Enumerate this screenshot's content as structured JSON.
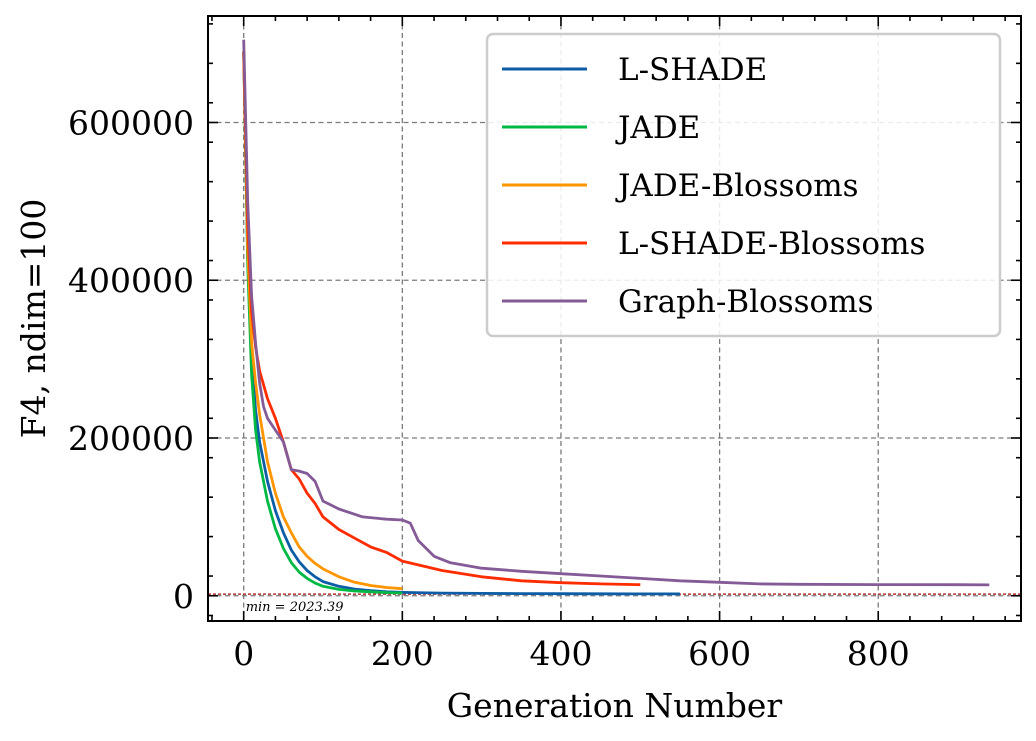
{
  "chart_data": {
    "type": "line",
    "xlabel": "Generation Number",
    "ylabel": "F4, ndim=100",
    "xlim": [
      -45,
      980
    ],
    "ylim": [
      -32000,
      735000
    ],
    "xticks": [
      0,
      200,
      400,
      600,
      800
    ],
    "yticks": [
      0,
      200000,
      400000,
      600000
    ],
    "grid": true,
    "legend_position": "top-right",
    "reference_line": {
      "y": 2023.39,
      "label": "min = 2023.39",
      "color": "#b03030"
    },
    "series": [
      {
        "name": "L-SHADE",
        "color": "#0c5da5",
        "x": [
          0,
          5,
          10,
          15,
          20,
          30,
          40,
          50,
          60,
          70,
          80,
          90,
          100,
          120,
          140,
          160,
          180,
          200,
          250,
          300,
          350,
          400,
          450,
          500,
          550
        ],
        "y": [
          690000,
          430000,
          300000,
          235000,
          195000,
          145000,
          108000,
          80000,
          58000,
          43000,
          32000,
          24000,
          18000,
          12000,
          8500,
          6500,
          5000,
          4200,
          3400,
          3000,
          2800,
          2600,
          2450,
          2350,
          2300
        ]
      },
      {
        "name": "JADE",
        "color": "#00b945",
        "x": [
          0,
          5,
          10,
          15,
          20,
          30,
          40,
          50,
          60,
          70,
          80,
          90,
          100,
          120,
          140,
          160,
          180,
          200
        ],
        "y": [
          690000,
          420000,
          280000,
          210000,
          170000,
          120000,
          85000,
          60000,
          42000,
          30000,
          22000,
          16000,
          12000,
          8000,
          6000,
          5000,
          4000,
          3500
        ]
      },
      {
        "name": "JADE-Blossoms",
        "color": "#ff9500",
        "x": [
          0,
          5,
          10,
          15,
          20,
          30,
          40,
          50,
          60,
          70,
          80,
          90,
          100,
          120,
          140,
          160,
          180,
          200
        ],
        "y": [
          690000,
          440000,
          320000,
          270000,
          230000,
          170000,
          130000,
          100000,
          80000,
          62000,
          50000,
          41000,
          34000,
          24000,
          17000,
          13000,
          10500,
          9000
        ]
      },
      {
        "name": "L-SHADE-Blossoms",
        "color": "#ff2c00",
        "x": [
          0,
          5,
          10,
          15,
          20,
          30,
          40,
          50,
          60,
          70,
          80,
          90,
          100,
          120,
          140,
          160,
          180,
          200,
          250,
          300,
          350,
          400,
          450,
          500
        ],
        "y": [
          690000,
          470000,
          360000,
          315000,
          285000,
          250000,
          225000,
          195000,
          160000,
          148000,
          130000,
          117000,
          100000,
          84000,
          73000,
          62000,
          55000,
          44000,
          32000,
          24000,
          19000,
          16500,
          15000,
          14000
        ]
      },
      {
        "name": "Graph-Blossoms",
        "color": "#845b97",
        "x": [
          0,
          5,
          10,
          15,
          20,
          25,
          30,
          40,
          50,
          60,
          70,
          80,
          90,
          100,
          110,
          120,
          150,
          180,
          200,
          210,
          220,
          240,
          260,
          300,
          350,
          400,
          450,
          500,
          550,
          600,
          650,
          700,
          800,
          900,
          940
        ],
        "y": [
          705000,
          500000,
          380000,
          320000,
          270000,
          240000,
          225000,
          210000,
          195000,
          160000,
          158000,
          155000,
          145000,
          120000,
          115000,
          110000,
          100000,
          97000,
          96000,
          92000,
          70000,
          50000,
          42000,
          35000,
          31000,
          28000,
          25000,
          22000,
          19000,
          17000,
          15000,
          14500,
          14200,
          14000,
          13800
        ]
      }
    ]
  }
}
